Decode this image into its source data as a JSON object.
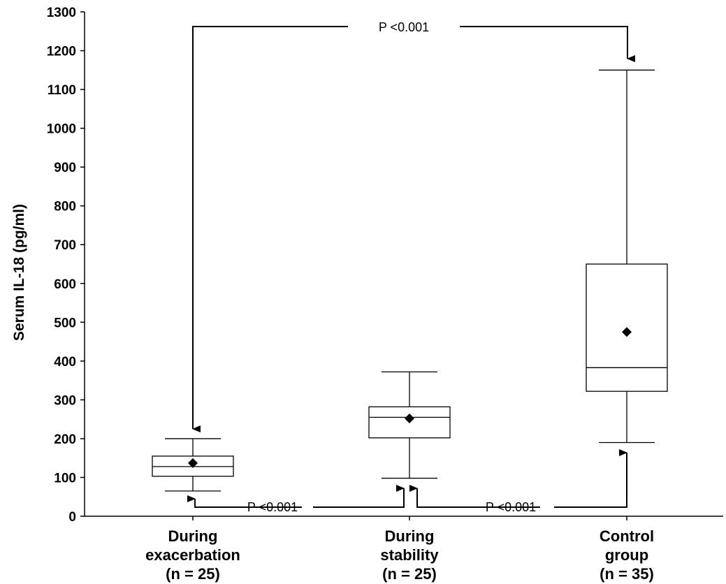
{
  "chart_data": {
    "type": "box",
    "ylabel": "Serum IL-18 (pg/ml)",
    "ylim": [
      0,
      1300
    ],
    "yticks": [
      0,
      100,
      200,
      300,
      400,
      500,
      600,
      700,
      800,
      900,
      1000,
      1100,
      1200,
      1300
    ],
    "grid": false,
    "categories": [
      [
        "During",
        "exacerbation",
        "(n = 25)"
      ],
      [
        "During",
        "stability",
        "(n = 25)"
      ],
      [
        "Control",
        "group",
        "(n = 35)"
      ]
    ],
    "boxes": [
      {
        "whisker_low": 65,
        "q1": 103,
        "median": 128,
        "q3": 155,
        "whisker_high": 200,
        "mean": 137
      },
      {
        "whisker_low": 98,
        "q1": 202,
        "median": 255,
        "q3": 282,
        "whisker_high": 372,
        "mean": 252
      },
      {
        "whisker_low": 190,
        "q1": 322,
        "median": 383,
        "q3": 650,
        "whisker_high": 1150,
        "mean": 475
      }
    ],
    "annotations": [
      {
        "text": "P <0.001",
        "from": 0,
        "to": 2,
        "position": "top"
      },
      {
        "text": "P <0.001",
        "from": 0,
        "to": 1,
        "position": "bottom"
      },
      {
        "text": "P <0.001",
        "from": 1,
        "to": 2,
        "position": "bottom"
      }
    ]
  }
}
